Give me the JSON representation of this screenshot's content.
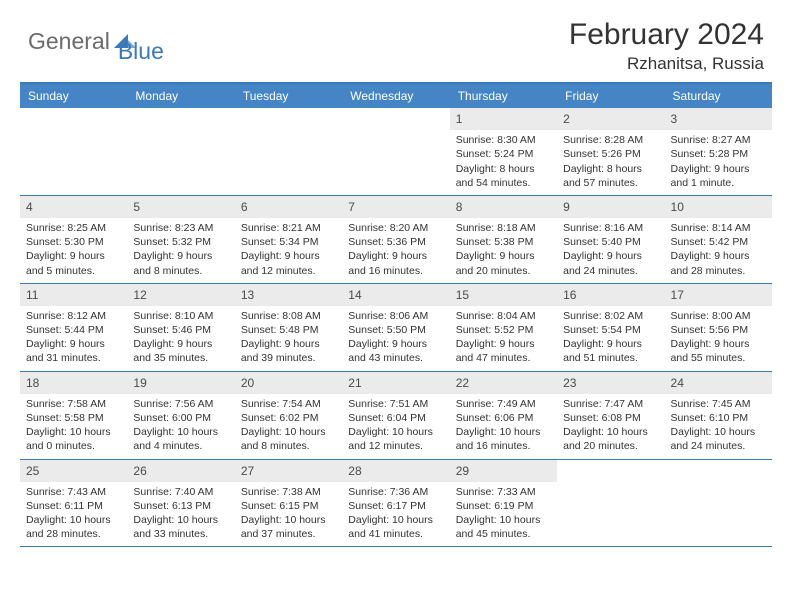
{
  "logo": {
    "general": "General",
    "blue": "Blue"
  },
  "header": {
    "month_title": "February 2024",
    "location": "Rzhanitsa, Russia"
  },
  "colors": {
    "header_bar": "#4585c5",
    "border": "#3a7ab8",
    "day_number_bg": "#ebebeb",
    "text": "#333333",
    "logo_gray": "#6b6b6b",
    "logo_blue": "#3a7ab8"
  },
  "weekdays": [
    "Sunday",
    "Monday",
    "Tuesday",
    "Wednesday",
    "Thursday",
    "Friday",
    "Saturday"
  ],
  "weeks": [
    [
      null,
      null,
      null,
      null,
      {
        "n": "1",
        "sr": "Sunrise: 8:30 AM",
        "ss": "Sunset: 5:24 PM",
        "dl1": "Daylight: 8 hours",
        "dl2": "and 54 minutes."
      },
      {
        "n": "2",
        "sr": "Sunrise: 8:28 AM",
        "ss": "Sunset: 5:26 PM",
        "dl1": "Daylight: 8 hours",
        "dl2": "and 57 minutes."
      },
      {
        "n": "3",
        "sr": "Sunrise: 8:27 AM",
        "ss": "Sunset: 5:28 PM",
        "dl1": "Daylight: 9 hours",
        "dl2": "and 1 minute."
      }
    ],
    [
      {
        "n": "4",
        "sr": "Sunrise: 8:25 AM",
        "ss": "Sunset: 5:30 PM",
        "dl1": "Daylight: 9 hours",
        "dl2": "and 5 minutes."
      },
      {
        "n": "5",
        "sr": "Sunrise: 8:23 AM",
        "ss": "Sunset: 5:32 PM",
        "dl1": "Daylight: 9 hours",
        "dl2": "and 8 minutes."
      },
      {
        "n": "6",
        "sr": "Sunrise: 8:21 AM",
        "ss": "Sunset: 5:34 PM",
        "dl1": "Daylight: 9 hours",
        "dl2": "and 12 minutes."
      },
      {
        "n": "7",
        "sr": "Sunrise: 8:20 AM",
        "ss": "Sunset: 5:36 PM",
        "dl1": "Daylight: 9 hours",
        "dl2": "and 16 minutes."
      },
      {
        "n": "8",
        "sr": "Sunrise: 8:18 AM",
        "ss": "Sunset: 5:38 PM",
        "dl1": "Daylight: 9 hours",
        "dl2": "and 20 minutes."
      },
      {
        "n": "9",
        "sr": "Sunrise: 8:16 AM",
        "ss": "Sunset: 5:40 PM",
        "dl1": "Daylight: 9 hours",
        "dl2": "and 24 minutes."
      },
      {
        "n": "10",
        "sr": "Sunrise: 8:14 AM",
        "ss": "Sunset: 5:42 PM",
        "dl1": "Daylight: 9 hours",
        "dl2": "and 28 minutes."
      }
    ],
    [
      {
        "n": "11",
        "sr": "Sunrise: 8:12 AM",
        "ss": "Sunset: 5:44 PM",
        "dl1": "Daylight: 9 hours",
        "dl2": "and 31 minutes."
      },
      {
        "n": "12",
        "sr": "Sunrise: 8:10 AM",
        "ss": "Sunset: 5:46 PM",
        "dl1": "Daylight: 9 hours",
        "dl2": "and 35 minutes."
      },
      {
        "n": "13",
        "sr": "Sunrise: 8:08 AM",
        "ss": "Sunset: 5:48 PM",
        "dl1": "Daylight: 9 hours",
        "dl2": "and 39 minutes."
      },
      {
        "n": "14",
        "sr": "Sunrise: 8:06 AM",
        "ss": "Sunset: 5:50 PM",
        "dl1": "Daylight: 9 hours",
        "dl2": "and 43 minutes."
      },
      {
        "n": "15",
        "sr": "Sunrise: 8:04 AM",
        "ss": "Sunset: 5:52 PM",
        "dl1": "Daylight: 9 hours",
        "dl2": "and 47 minutes."
      },
      {
        "n": "16",
        "sr": "Sunrise: 8:02 AM",
        "ss": "Sunset: 5:54 PM",
        "dl1": "Daylight: 9 hours",
        "dl2": "and 51 minutes."
      },
      {
        "n": "17",
        "sr": "Sunrise: 8:00 AM",
        "ss": "Sunset: 5:56 PM",
        "dl1": "Daylight: 9 hours",
        "dl2": "and 55 minutes."
      }
    ],
    [
      {
        "n": "18",
        "sr": "Sunrise: 7:58 AM",
        "ss": "Sunset: 5:58 PM",
        "dl1": "Daylight: 10 hours",
        "dl2": "and 0 minutes."
      },
      {
        "n": "19",
        "sr": "Sunrise: 7:56 AM",
        "ss": "Sunset: 6:00 PM",
        "dl1": "Daylight: 10 hours",
        "dl2": "and 4 minutes."
      },
      {
        "n": "20",
        "sr": "Sunrise: 7:54 AM",
        "ss": "Sunset: 6:02 PM",
        "dl1": "Daylight: 10 hours",
        "dl2": "and 8 minutes."
      },
      {
        "n": "21",
        "sr": "Sunrise: 7:51 AM",
        "ss": "Sunset: 6:04 PM",
        "dl1": "Daylight: 10 hours",
        "dl2": "and 12 minutes."
      },
      {
        "n": "22",
        "sr": "Sunrise: 7:49 AM",
        "ss": "Sunset: 6:06 PM",
        "dl1": "Daylight: 10 hours",
        "dl2": "and 16 minutes."
      },
      {
        "n": "23",
        "sr": "Sunrise: 7:47 AM",
        "ss": "Sunset: 6:08 PM",
        "dl1": "Daylight: 10 hours",
        "dl2": "and 20 minutes."
      },
      {
        "n": "24",
        "sr": "Sunrise: 7:45 AM",
        "ss": "Sunset: 6:10 PM",
        "dl1": "Daylight: 10 hours",
        "dl2": "and 24 minutes."
      }
    ],
    [
      {
        "n": "25",
        "sr": "Sunrise: 7:43 AM",
        "ss": "Sunset: 6:11 PM",
        "dl1": "Daylight: 10 hours",
        "dl2": "and 28 minutes."
      },
      {
        "n": "26",
        "sr": "Sunrise: 7:40 AM",
        "ss": "Sunset: 6:13 PM",
        "dl1": "Daylight: 10 hours",
        "dl2": "and 33 minutes."
      },
      {
        "n": "27",
        "sr": "Sunrise: 7:38 AM",
        "ss": "Sunset: 6:15 PM",
        "dl1": "Daylight: 10 hours",
        "dl2": "and 37 minutes."
      },
      {
        "n": "28",
        "sr": "Sunrise: 7:36 AM",
        "ss": "Sunset: 6:17 PM",
        "dl1": "Daylight: 10 hours",
        "dl2": "and 41 minutes."
      },
      {
        "n": "29",
        "sr": "Sunrise: 7:33 AM",
        "ss": "Sunset: 6:19 PM",
        "dl1": "Daylight: 10 hours",
        "dl2": "and 45 minutes."
      },
      null,
      null
    ]
  ]
}
